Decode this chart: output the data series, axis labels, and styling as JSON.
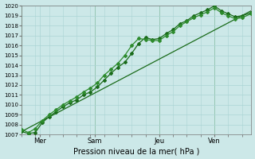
{
  "xlabel": "Pression niveau de la mer( hPa )",
  "ylim": [
    1007,
    1020
  ],
  "xlim": [
    0,
    100
  ],
  "yticks": [
    1007,
    1008,
    1009,
    1010,
    1011,
    1012,
    1013,
    1014,
    1015,
    1016,
    1017,
    1018,
    1019,
    1020
  ],
  "xtick_positions": [
    8,
    32,
    60,
    84
  ],
  "xtick_labels": [
    "Mer",
    "Sam",
    "Jeu",
    "Ven"
  ],
  "vline_positions": [
    0,
    32,
    60,
    84,
    100
  ],
  "bg_color": "#cce8e8",
  "grid_color": "#aad4d4",
  "line_color": "#1a6b1a",
  "line_color2": "#2d8b2d",
  "series1_x": [
    0,
    3,
    6,
    9,
    12,
    15,
    18,
    21,
    24,
    27,
    30,
    33,
    36,
    39,
    42,
    45,
    48,
    51,
    54,
    57,
    60,
    63,
    66,
    69,
    72,
    75,
    78,
    81,
    84,
    87,
    90,
    93,
    96,
    100
  ],
  "series1_y": [
    1007.3,
    1007.1,
    1007.2,
    1008.2,
    1008.8,
    1009.3,
    1009.8,
    1010.2,
    1010.5,
    1011.0,
    1011.3,
    1011.8,
    1012.5,
    1013.2,
    1013.8,
    1014.3,
    1015.2,
    1016.2,
    1016.8,
    1016.6,
    1016.7,
    1017.2,
    1017.6,
    1018.2,
    1018.5,
    1019.0,
    1019.3,
    1019.6,
    1020.0,
    1019.5,
    1019.2,
    1018.9,
    1019.0,
    1019.3
  ],
  "series2_x": [
    0,
    3,
    6,
    9,
    12,
    15,
    18,
    21,
    24,
    27,
    30,
    33,
    36,
    39,
    42,
    45,
    48,
    51,
    54,
    57,
    60,
    63,
    66,
    69,
    72,
    75,
    78,
    81,
    84,
    87,
    90,
    93,
    96,
    100
  ],
  "series2_y": [
    1007.5,
    1007.2,
    1007.6,
    1008.4,
    1009.0,
    1009.5,
    1010.0,
    1010.4,
    1010.8,
    1011.3,
    1011.7,
    1012.2,
    1013.0,
    1013.6,
    1014.2,
    1015.0,
    1016.0,
    1016.7,
    1016.6,
    1016.5,
    1016.5,
    1017.0,
    1017.4,
    1018.0,
    1018.4,
    1018.8,
    1019.1,
    1019.4,
    1019.8,
    1019.3,
    1019.0,
    1018.7,
    1018.8,
    1019.2
  ],
  "series3_x": [
    0,
    100
  ],
  "series3_y": [
    1007.3,
    1019.5
  ],
  "marker": "D",
  "markersize": 2.0,
  "linewidth": 0.9
}
